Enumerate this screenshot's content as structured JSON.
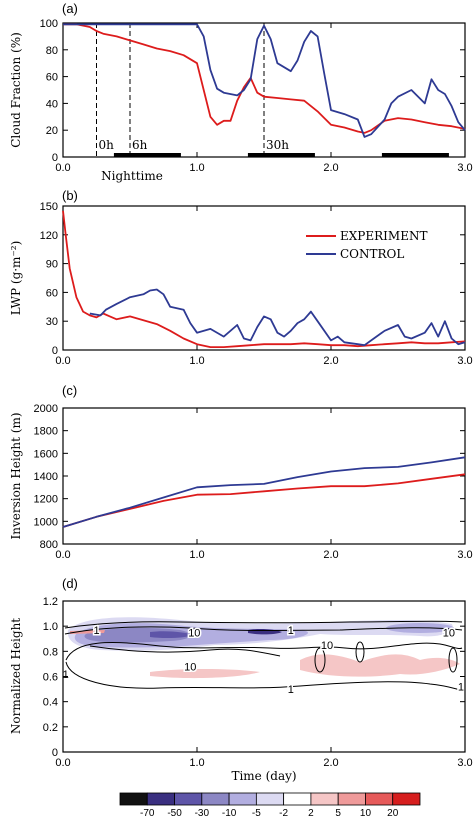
{
  "chart_data": [
    {
      "panel_label": "(a)",
      "type": "line",
      "ylabel": "Cloud Fraction (%)",
      "xlim": [
        0,
        3
      ],
      "ylim": [
        0,
        100
      ],
      "x_ticks": [
        "0.0",
        "1.0",
        "2.0",
        "3.0"
      ],
      "y_ticks": [
        "0",
        "20",
        "40",
        "60",
        "80",
        "100"
      ],
      "colors": {
        "experiment": "#dd1c1c",
        "control": "#2e3a93"
      },
      "series": [
        {
          "key": "experiment",
          "x": [
            0,
            0.1,
            0.2,
            0.25,
            0.3,
            0.4,
            0.5,
            0.6,
            0.7,
            0.8,
            0.9,
            1.0,
            1.05,
            1.1,
            1.15,
            1.2,
            1.25,
            1.3,
            1.35,
            1.4,
            1.45,
            1.5,
            1.6,
            1.7,
            1.8,
            1.9,
            2.0,
            2.1,
            2.2,
            2.25,
            2.3,
            2.4,
            2.5,
            2.6,
            2.7,
            2.8,
            2.9,
            3.0
          ],
          "y": [
            99,
            99,
            97,
            94,
            92,
            90,
            87,
            84,
            81,
            79,
            76,
            70,
            50,
            30,
            24,
            27,
            27,
            42,
            52,
            59,
            48,
            45,
            44,
            43,
            42,
            34,
            24,
            22,
            19,
            18,
            20,
            27,
            29,
            28,
            26,
            24,
            23,
            21
          ]
        },
        {
          "key": "control",
          "x": [
            0,
            0.3,
            0.6,
            0.9,
            1.0,
            1.05,
            1.1,
            1.15,
            1.2,
            1.3,
            1.35,
            1.4,
            1.45,
            1.5,
            1.55,
            1.6,
            1.7,
            1.75,
            1.8,
            1.85,
            1.9,
            1.95,
            2.0,
            2.1,
            2.2,
            2.25,
            2.3,
            2.4,
            2.45,
            2.5,
            2.6,
            2.7,
            2.75,
            2.8,
            2.85,
            2.9,
            2.95,
            3.0
          ],
          "y": [
            99,
            99,
            99,
            99,
            99,
            90,
            65,
            51,
            48,
            46,
            50,
            58,
            88,
            98,
            88,
            70,
            64,
            72,
            86,
            94,
            90,
            62,
            35,
            32,
            28,
            15,
            17,
            28,
            40,
            45,
            50,
            40,
            58,
            50,
            47,
            38,
            26,
            20
          ]
        }
      ],
      "annotations": [
        {
          "text": "0h",
          "x": 0.25
        },
        {
          "text": "6h",
          "x": 0.5
        },
        {
          "text": "30h",
          "x": 1.5
        }
      ],
      "nighttime_bars": [
        [
          0.38,
          0.88
        ],
        [
          1.38,
          1.88
        ],
        [
          2.38,
          2.88
        ]
      ],
      "xlabel": "Nighttime"
    },
    {
      "panel_label": "(b)",
      "type": "line",
      "ylabel": "LWP (g·m⁻²)",
      "xlim": [
        0,
        3
      ],
      "ylim": [
        0,
        150
      ],
      "x_ticks": [
        "0.0",
        "1.0",
        "2.0",
        "3.0"
      ],
      "y_ticks": [
        "0",
        "30",
        "60",
        "90",
        "120",
        "150"
      ],
      "legend": {
        "placement": "top-right",
        "entries": [
          "EXPERIMENT",
          "CONTROL"
        ]
      },
      "series": [
        {
          "key": "experiment",
          "x": [
            0,
            0.02,
            0.05,
            0.1,
            0.15,
            0.2,
            0.25,
            0.3,
            0.35,
            0.4,
            0.5,
            0.6,
            0.7,
            0.8,
            0.9,
            1.0,
            1.1,
            1.2,
            1.3,
            1.4,
            1.5,
            1.6,
            1.7,
            1.8,
            1.9,
            2.0,
            2.1,
            2.2,
            2.3,
            2.4,
            2.5,
            2.6,
            2.7,
            2.8,
            2.9,
            3.0
          ],
          "y": [
            145,
            120,
            85,
            55,
            40,
            36,
            34,
            38,
            35,
            32,
            35,
            31,
            27,
            20,
            12,
            6,
            3,
            3,
            4,
            5,
            6,
            6,
            6,
            7,
            6,
            5,
            5,
            4,
            5,
            6,
            7,
            8,
            7,
            7,
            8,
            9
          ]
        },
        {
          "key": "control",
          "x": [
            0.2,
            0.28,
            0.32,
            0.4,
            0.5,
            0.6,
            0.65,
            0.7,
            0.75,
            0.8,
            0.9,
            0.95,
            1.0,
            1.1,
            1.2,
            1.3,
            1.35,
            1.4,
            1.45,
            1.5,
            1.55,
            1.6,
            1.65,
            1.7,
            1.75,
            1.8,
            1.85,
            1.9,
            2.0,
            2.05,
            2.1,
            2.2,
            2.25,
            2.3,
            2.4,
            2.5,
            2.55,
            2.6,
            2.7,
            2.75,
            2.8,
            2.85,
            2.9,
            2.95,
            3.0
          ],
          "y": [
            38,
            36,
            42,
            48,
            55,
            58,
            62,
            63,
            58,
            45,
            42,
            28,
            18,
            22,
            14,
            26,
            12,
            10,
            24,
            35,
            32,
            18,
            14,
            20,
            28,
            32,
            40,
            30,
            10,
            14,
            8,
            6,
            5,
            10,
            20,
            26,
            14,
            12,
            18,
            28,
            14,
            30,
            12,
            6,
            8
          ]
        }
      ]
    },
    {
      "panel_label": "(c)",
      "type": "line",
      "ylabel": "Inversion Height (m)",
      "xlim": [
        0,
        3
      ],
      "ylim": [
        800,
        2000
      ],
      "x_ticks": [
        "0.0",
        "1.0",
        "2.0",
        "3.0"
      ],
      "y_ticks": [
        "800",
        "1000",
        "1200",
        "1400",
        "1600",
        "1800",
        "2000"
      ],
      "series": [
        {
          "key": "experiment",
          "x": [
            0,
            0.25,
            0.5,
            0.75,
            1.0,
            1.25,
            1.5,
            1.75,
            2.0,
            2.25,
            2.5,
            2.75,
            3.0
          ],
          "y": [
            950,
            1040,
            1110,
            1180,
            1235,
            1240,
            1265,
            1290,
            1310,
            1310,
            1335,
            1375,
            1415
          ]
        },
        {
          "key": "control",
          "x": [
            0,
            0.25,
            0.5,
            0.75,
            1.0,
            1.25,
            1.5,
            1.75,
            2.0,
            2.25,
            2.5,
            2.75,
            3.0
          ],
          "y": [
            950,
            1040,
            1120,
            1210,
            1300,
            1320,
            1330,
            1390,
            1440,
            1470,
            1480,
            1520,
            1565
          ]
        }
      ]
    },
    {
      "panel_label": "(d)",
      "type": "heatmap",
      "ylabel": "Normalized Height",
      "xlabel": "Time (day)",
      "xlim": [
        0,
        3
      ],
      "ylim": [
        0,
        1.2
      ],
      "x_ticks": [
        "0.0",
        "1.0",
        "2.0",
        "3.0"
      ],
      "y_ticks": [
        "0",
        "0.2",
        "0.4",
        "0.6",
        "0.8",
        "1.0",
        "1.2"
      ],
      "contour_labels": [
        {
          "text": "1",
          "x": 0.02,
          "y": 0.62
        },
        {
          "text": "1",
          "x": 0.25,
          "y": 0.97
        },
        {
          "text": "10",
          "x": 0.98,
          "y": 0.95
        },
        {
          "text": "10",
          "x": 0.95,
          "y": 0.68
        },
        {
          "text": "10",
          "x": 1.97,
          "y": 0.85
        },
        {
          "text": "1",
          "x": 1.7,
          "y": 0.97
        },
        {
          "text": "10",
          "x": 2.88,
          "y": 0.95
        },
        {
          "text": "1",
          "x": 1.7,
          "y": 0.5
        },
        {
          "text": "1",
          "x": 2.97,
          "y": 0.52
        }
      ],
      "colorbar": {
        "labels": [
          "-70",
          "-50",
          "-30",
          "-10",
          "-5",
          "-2",
          "2",
          "5",
          "10",
          "20"
        ],
        "colors": [
          "#111111",
          "#3a2f80",
          "#5e55a8",
          "#8c87c4",
          "#b2aee0",
          "#dcdaf2",
          "#ffffff",
          "#f5c6c6",
          "#ef9a9a",
          "#e65a5a",
          "#d61e1e"
        ]
      }
    }
  ]
}
